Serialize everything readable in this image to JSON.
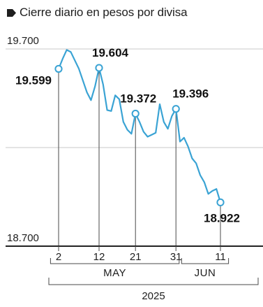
{
  "chart_data": {
    "type": "line",
    "title": "Cierre diario en pesos por divisa",
    "ylim": [
      18700,
      19700
    ],
    "y_ticks": [
      {
        "value": 19700,
        "label": "19.700"
      },
      {
        "value": 18700,
        "label": "18.700"
      }
    ],
    "gridlines": [
      19700,
      19200,
      18700
    ],
    "x_ticks": [
      {
        "day": 2,
        "label": "2"
      },
      {
        "day": 12,
        "label": "12"
      },
      {
        "day": 21,
        "label": "21"
      },
      {
        "day": 31,
        "label": "31"
      },
      {
        "day": 42,
        "label": "11"
      }
    ],
    "x_groups": [
      {
        "label": "MAY",
        "from": 0,
        "to": 31.8
      },
      {
        "label": "JUN",
        "from": 32.4,
        "to": 44
      }
    ],
    "year": "2025",
    "colors": {
      "line": "#3aa3d4",
      "drop_line": "#4a4a4a",
      "grid": "#c9c9c9",
      "axis": "#222222",
      "text": "#1e1e1e"
    },
    "series": [
      {
        "points": [
          {
            "day": 2,
            "value": 19599
          },
          {
            "day": 3,
            "value": 19650
          },
          {
            "day": 4,
            "value": 19695
          },
          {
            "day": 5,
            "value": 19685
          },
          {
            "day": 7,
            "value": 19600
          },
          {
            "day": 9,
            "value": 19480
          },
          {
            "day": 10,
            "value": 19440
          },
          {
            "day": 11,
            "value": 19510
          },
          {
            "day": 12,
            "value": 19604
          },
          {
            "day": 13,
            "value": 19520
          },
          {
            "day": 14,
            "value": 19390
          },
          {
            "day": 15,
            "value": 19385
          },
          {
            "day": 16,
            "value": 19465
          },
          {
            "day": 17,
            "value": 19445
          },
          {
            "day": 18,
            "value": 19330
          },
          {
            "day": 19,
            "value": 19290
          },
          {
            "day": 20,
            "value": 19270
          },
          {
            "day": 21,
            "value": 19372
          },
          {
            "day": 22,
            "value": 19330
          },
          {
            "day": 23,
            "value": 19280
          },
          {
            "day": 24,
            "value": 19255
          },
          {
            "day": 25,
            "value": 19265
          },
          {
            "day": 26,
            "value": 19275
          },
          {
            "day": 27,
            "value": 19420
          },
          {
            "day": 28,
            "value": 19330
          },
          {
            "day": 29,
            "value": 19295
          },
          {
            "day": 30,
            "value": 19360
          },
          {
            "day": 31,
            "value": 19396
          },
          {
            "day": 32,
            "value": 19230
          },
          {
            "day": 33,
            "value": 19250
          },
          {
            "day": 34,
            "value": 19205
          },
          {
            "day": 35,
            "value": 19145
          },
          {
            "day": 36,
            "value": 19120
          },
          {
            "day": 37,
            "value": 19060
          },
          {
            "day": 38,
            "value": 19025
          },
          {
            "day": 39,
            "value": 18965
          },
          {
            "day": 40,
            "value": 18980
          },
          {
            "day": 41,
            "value": 18990
          },
          {
            "day": 42,
            "value": 18922
          }
        ]
      }
    ],
    "highlights": [
      {
        "day": 2,
        "value": 19599,
        "label": "19.599",
        "pos": "left"
      },
      {
        "day": 12,
        "value": 19604,
        "label": "19.604",
        "pos": "above"
      },
      {
        "day": 21,
        "value": 19372,
        "label": "19.372",
        "pos": "above"
      },
      {
        "day": 31,
        "value": 19396,
        "label": "19.396",
        "pos": "above"
      },
      {
        "day": 42,
        "value": 18922,
        "label": "18.922",
        "pos": "below"
      }
    ]
  }
}
